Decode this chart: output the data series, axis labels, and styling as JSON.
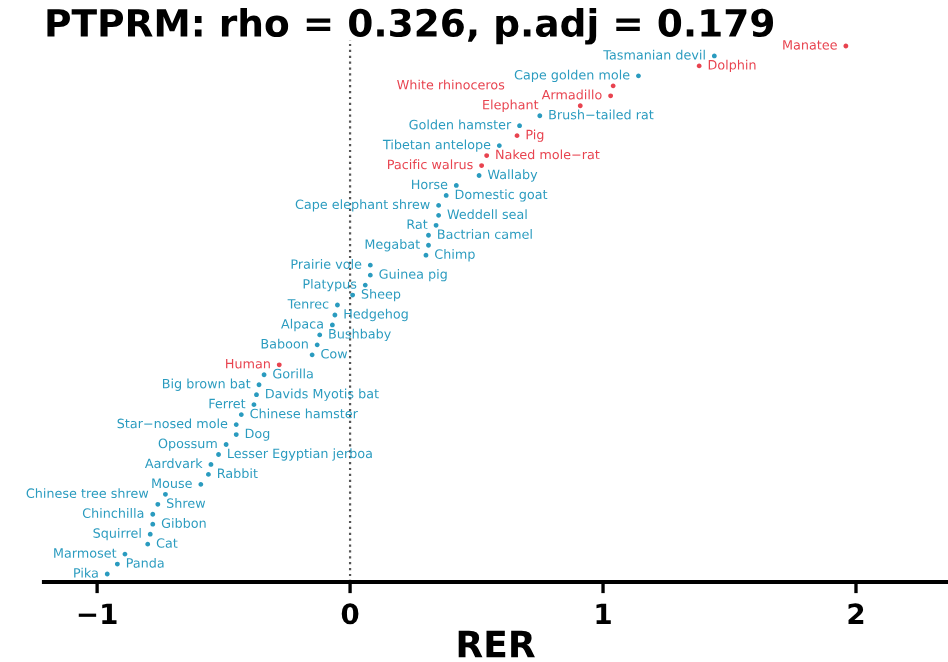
{
  "chart_data": {
    "type": "scatter",
    "orientation": "horizontal",
    "title": "PTPRM: rho = 0.326, p.adj = 0.179",
    "xlabel": "RER",
    "categories": [
      "Manatee",
      "Tasmanian devil",
      "Dolphin",
      "Cape golden mole",
      "White rhinoceros",
      "Armadillo",
      "Elephant",
      "Brush−tailed rat",
      "Golden hamster",
      "Pig",
      "Tibetan antelope",
      "Naked mole−rat",
      "Pacific walrus",
      "Wallaby",
      "Horse",
      "Domestic goat",
      "Cape elephant shrew",
      "Weddell seal",
      "Rat",
      "Bactrian camel",
      "Megabat",
      "Chimp",
      "Prairie vole",
      "Guinea pig",
      "Platypus",
      "Sheep",
      "Tenrec",
      "Hedgehog",
      "Alpaca",
      "Bushbaby",
      "Baboon",
      "Cow",
      "Human",
      "Gorilla",
      "Big brown bat",
      "Davids Myotis bat",
      "Ferret",
      "Chinese hamster",
      "Star−nosed mole",
      "Dog",
      "Opossum",
      "Lesser Egyptian jerboa",
      "Aardvark",
      "Rabbit",
      "Mouse",
      "Chinese tree shrew",
      "Shrew",
      "Chinchilla",
      "Gibbon",
      "Squirrel",
      "Cat",
      "Marmoset",
      "Panda",
      "Pika"
    ],
    "values": [
      1.96,
      1.44,
      1.38,
      1.14,
      1.04,
      1.03,
      0.91,
      0.75,
      0.67,
      0.66,
      0.59,
      0.54,
      0.52,
      0.51,
      0.42,
      0.38,
      0.35,
      0.35,
      0.34,
      0.31,
      0.31,
      0.3,
      0.08,
      0.08,
      0.06,
      0.01,
      -0.05,
      -0.06,
      -0.07,
      -0.12,
      -0.13,
      -0.15,
      -0.28,
      -0.34,
      -0.36,
      -0.37,
      -0.38,
      -0.43,
      -0.45,
      -0.45,
      -0.49,
      -0.52,
      -0.55,
      -0.56,
      -0.59,
      -0.73,
      -0.76,
      -0.78,
      -0.78,
      -0.79,
      -0.8,
      -0.89,
      -0.92,
      -0.96
    ],
    "colors": [
      "#e8434f",
      "#2a9bbf",
      "#e8434f",
      "#2a9bbf",
      "#e8434f",
      "#e8434f",
      "#e8434f",
      "#2a9bbf",
      "#2a9bbf",
      "#e8434f",
      "#2a9bbf",
      "#e8434f",
      "#e8434f",
      "#2a9bbf",
      "#2a9bbf",
      "#2a9bbf",
      "#2a9bbf",
      "#2a9bbf",
      "#2a9bbf",
      "#2a9bbf",
      "#2a9bbf",
      "#2a9bbf",
      "#2a9bbf",
      "#2a9bbf",
      "#2a9bbf",
      "#2a9bbf",
      "#2a9bbf",
      "#2a9bbf",
      "#2a9bbf",
      "#2a9bbf",
      "#2a9bbf",
      "#2a9bbf",
      "#e8434f",
      "#2a9bbf",
      "#2a9bbf",
      "#2a9bbf",
      "#2a9bbf",
      "#2a9bbf",
      "#2a9bbf",
      "#2a9bbf",
      "#2a9bbf",
      "#2a9bbf",
      "#2a9bbf",
      "#2a9bbf",
      "#2a9bbf",
      "#2a9bbf",
      "#2a9bbf",
      "#2a9bbf",
      "#2a9bbf",
      "#2a9bbf",
      "#2a9bbf",
      "#2a9bbf",
      "#2a9bbf",
      "#2a9bbf"
    ],
    "xlim": [
      -1.21,
      2.36
    ],
    "xticks": [
      {
        "value": -1,
        "label": "−1"
      },
      0,
      1,
      2
    ],
    "ref_lines": [
      {
        "axis": "x",
        "value": 0,
        "color": "#555555",
        "line_style": "dotted"
      }
    ],
    "marker": "circle",
    "grid": false,
    "legend": false
  }
}
